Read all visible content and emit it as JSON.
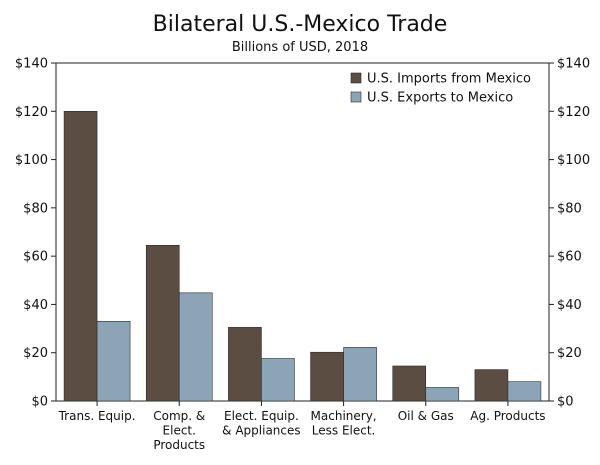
{
  "chart_data": {
    "type": "bar",
    "title": "Bilateral U.S.-Mexico Trade",
    "subtitle": "Billions of USD, 2018",
    "categories": [
      [
        "Trans. Equip."
      ],
      [
        "Comp. &",
        "Elect.",
        "Products"
      ],
      [
        "Elect. Equip.",
        "& Appliances"
      ],
      [
        "Machinery,",
        "Less Elect."
      ],
      [
        "Oil & Gas"
      ],
      [
        "Ag. Products"
      ]
    ],
    "series": [
      {
        "name": "U.S. Imports from Mexico",
        "color": "#5b4d42",
        "values": [
          120,
          64.5,
          30.5,
          20.2,
          14.5,
          13
        ]
      },
      {
        "name": "U.S. Exports to Mexico",
        "color": "#8ca5b6",
        "values": [
          33,
          44.8,
          17.6,
          22.2,
          5.6,
          8
        ]
      }
    ],
    "ylim": [
      0,
      140
    ],
    "yticks": [
      0,
      20,
      40,
      60,
      80,
      100,
      120,
      140
    ],
    "ytick_labels": [
      "$0",
      "$20",
      "$40",
      "$60",
      "$80",
      "$100",
      "$120",
      "$140"
    ],
    "legend": "top-right",
    "grid": false,
    "secondary_y_axis": true
  }
}
